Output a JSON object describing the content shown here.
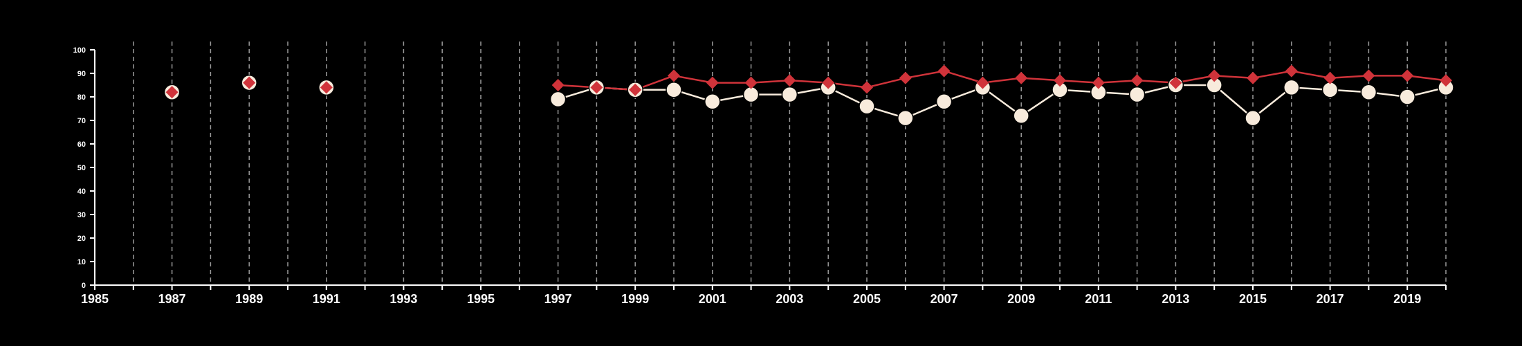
{
  "chart_data": {
    "type": "line",
    "title": "",
    "xlabel": "",
    "ylabel": "",
    "xlim": [
      1985,
      2020
    ],
    "ylim": [
      0,
      100
    ],
    "x_ticks": [
      1985,
      1987,
      1989,
      1991,
      1993,
      1995,
      1997,
      1999,
      2001,
      2003,
      2005,
      2007,
      2009,
      2011,
      2013,
      2015,
      2017,
      2019
    ],
    "y_ticks": [
      0,
      10,
      20,
      30,
      40,
      50,
      60,
      70,
      80,
      90,
      100
    ],
    "grid": "vertical dashed lines at every year",
    "legend": "none",
    "series": [
      {
        "marker": "circle",
        "color": "#f8ebdc",
        "points": [
          {
            "x": 1987,
            "y": 82
          },
          {
            "x": 1989,
            "y": 86
          },
          {
            "x": 1991,
            "y": 84
          },
          {
            "x": 1997,
            "y": 79
          },
          {
            "x": 1998,
            "y": 84
          },
          {
            "x": 1999,
            "y": 83
          },
          {
            "x": 2000,
            "y": 83
          },
          {
            "x": 2001,
            "y": 78
          },
          {
            "x": 2002,
            "y": 81
          },
          {
            "x": 2003,
            "y": 81
          },
          {
            "x": 2004,
            "y": 84
          },
          {
            "x": 2005,
            "y": 76
          },
          {
            "x": 2006,
            "y": 71
          },
          {
            "x": 2007,
            "y": 78
          },
          {
            "x": 2008,
            "y": 84
          },
          {
            "x": 2009,
            "y": 72
          },
          {
            "x": 2010,
            "y": 83
          },
          {
            "x": 2011,
            "y": 82
          },
          {
            "x": 2012,
            "y": 81
          },
          {
            "x": 2013,
            "y": 85
          },
          {
            "x": 2014,
            "y": 85
          },
          {
            "x": 2015,
            "y": 71
          },
          {
            "x": 2016,
            "y": 84
          },
          {
            "x": 2017,
            "y": 83
          },
          {
            "x": 2018,
            "y": 82
          },
          {
            "x": 2019,
            "y": 80
          },
          {
            "x": 2020,
            "y": 84
          }
        ]
      },
      {
        "marker": "diamond",
        "color": "#d0333a",
        "points": [
          {
            "x": 1987,
            "y": 82
          },
          {
            "x": 1989,
            "y": 86
          },
          {
            "x": 1991,
            "y": 84
          },
          {
            "x": 1997,
            "y": 85
          },
          {
            "x": 1998,
            "y": 84
          },
          {
            "x": 1999,
            "y": 83
          },
          {
            "x": 2000,
            "y": 89
          },
          {
            "x": 2001,
            "y": 86
          },
          {
            "x": 2002,
            "y": 86
          },
          {
            "x": 2003,
            "y": 87
          },
          {
            "x": 2004,
            "y": 86
          },
          {
            "x": 2005,
            "y": 84
          },
          {
            "x": 2006,
            "y": 88
          },
          {
            "x": 2007,
            "y": 91
          },
          {
            "x": 2008,
            "y": 86
          },
          {
            "x": 2009,
            "y": 88
          },
          {
            "x": 2010,
            "y": 87
          },
          {
            "x": 2011,
            "y": 86
          },
          {
            "x": 2012,
            "y": 87
          },
          {
            "x": 2013,
            "y": 86
          },
          {
            "x": 2014,
            "y": 89
          },
          {
            "x": 2015,
            "y": 88
          },
          {
            "x": 2016,
            "y": 91
          },
          {
            "x": 2017,
            "y": 88
          },
          {
            "x": 2018,
            "y": 89
          },
          {
            "x": 2019,
            "y": 89
          },
          {
            "x": 2020,
            "y": 87
          }
        ]
      }
    ]
  }
}
